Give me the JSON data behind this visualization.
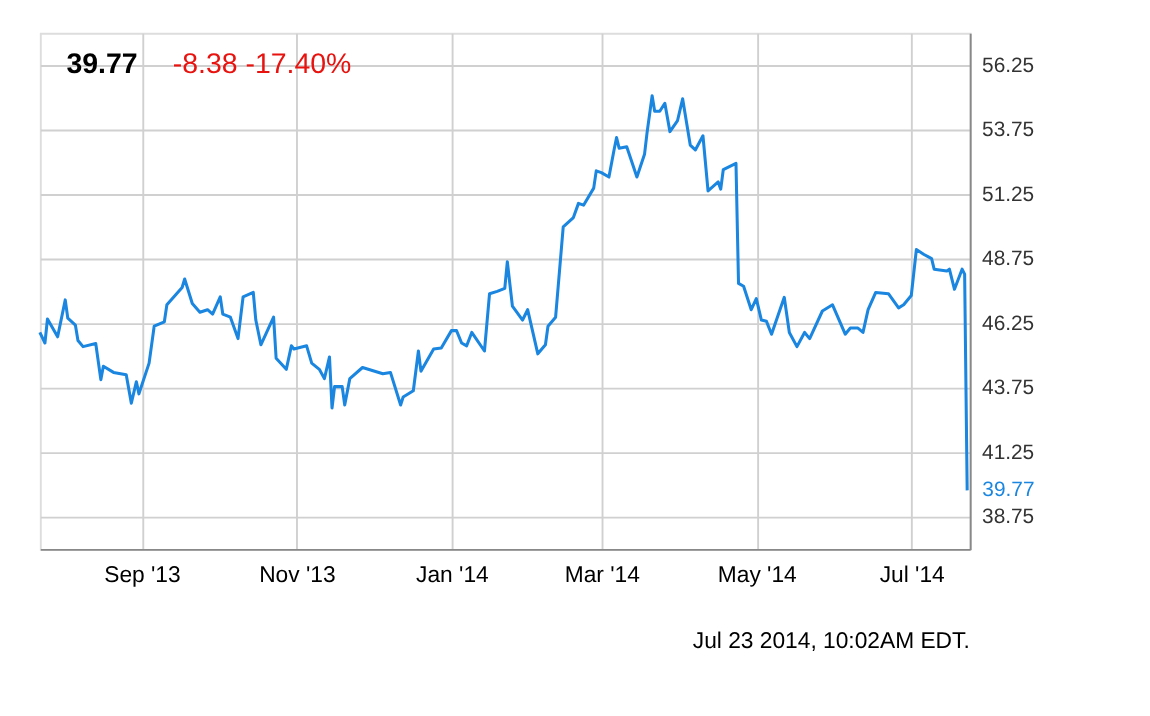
{
  "chart_data": {
    "type": "line",
    "title": "39.77",
    "subtitle": "-8.38 -17.40%",
    "x": [
      "2013-07-23",
      "2013-07-25",
      "2013-07-26",
      "2013-07-30",
      "2013-08-02",
      "2013-08-03",
      "2013-08-06",
      "2013-08-07",
      "2013-08-09",
      "2013-08-14",
      "2013-08-16",
      "2013-08-17",
      "2013-08-21",
      "2013-08-26",
      "2013-08-28",
      "2013-08-30",
      "2013-08-31",
      "2013-09-04",
      "2013-09-06",
      "2013-09-10",
      "2013-09-11",
      "2013-09-17",
      "2013-09-18",
      "2013-09-21",
      "2013-09-24",
      "2013-09-27",
      "2013-09-29",
      "2013-10-02",
      "2013-10-03",
      "2013-10-06",
      "2013-10-09",
      "2013-10-11",
      "2013-10-15",
      "2013-10-16",
      "2013-10-18",
      "2013-10-23",
      "2013-10-24",
      "2013-10-28",
      "2013-10-30",
      "2013-10-31",
      "2013-11-05",
      "2013-11-07",
      "2013-11-10",
      "2013-11-12",
      "2013-11-14",
      "2013-11-15",
      "2013-11-16",
      "2013-11-19",
      "2013-11-20",
      "2013-11-22",
      "2013-11-27",
      "2013-12-05",
      "2013-12-08",
      "2013-12-12",
      "2013-12-13",
      "2013-12-17",
      "2013-12-19",
      "2013-12-20",
      "2013-12-25",
      "2013-12-28",
      "2014-01-01",
      "2014-01-03",
      "2014-01-05",
      "2014-01-07",
      "2014-01-09",
      "2014-01-14",
      "2014-01-16",
      "2014-01-19",
      "2014-01-22",
      "2014-01-23",
      "2014-01-25",
      "2014-01-29",
      "2014-01-31",
      "2014-02-04",
      "2014-02-07",
      "2014-02-08",
      "2014-02-11",
      "2014-02-14",
      "2014-02-18",
      "2014-02-20",
      "2014-02-22",
      "2014-02-26",
      "2014-02-27",
      "2014-03-01",
      "2014-03-04",
      "2014-03-06",
      "2014-03-07",
      "2014-03-08",
      "2014-03-11",
      "2014-03-15",
      "2014-03-18",
      "2014-03-19",
      "2014-03-21",
      "2014-03-22",
      "2014-03-24",
      "2014-03-26",
      "2014-03-28",
      "2014-03-31",
      "2014-04-02",
      "2014-04-05",
      "2014-04-07",
      "2014-04-10",
      "2014-04-12",
      "2014-04-16",
      "2014-04-17",
      "2014-04-18",
      "2014-04-23",
      "2014-04-24",
      "2014-04-26",
      "2014-04-29",
      "2014-05-01",
      "2014-05-03",
      "2014-05-05",
      "2014-05-07",
      "2014-05-12",
      "2014-05-14",
      "2014-05-17",
      "2014-05-20",
      "2014-05-22",
      "2014-05-27",
      "2014-05-31",
      "2014-06-05",
      "2014-06-07",
      "2014-06-10",
      "2014-06-12",
      "2014-06-14",
      "2014-06-17",
      "2014-06-22",
      "2014-06-26",
      "2014-06-28",
      "2014-07-01",
      "2014-07-03",
      "2014-07-06",
      "2014-07-09",
      "2014-07-10",
      "2014-07-15",
      "2014-07-16",
      "2014-07-18",
      "2014-07-21",
      "2014-07-22",
      "2014-07-23"
    ],
    "series": [
      {
        "color": "#1a86e0",
        "values": [
          45.89,
          45.48,
          46.41,
          45.72,
          47.15,
          46.44,
          46.17,
          45.58,
          45.34,
          45.46,
          44.06,
          44.58,
          44.34,
          44.25,
          43.15,
          43.98,
          43.51,
          44.7,
          46.13,
          46.3,
          46.96,
          47.63,
          47.96,
          47.01,
          46.67,
          46.77,
          46.6,
          47.27,
          46.6,
          46.48,
          45.65,
          47.27,
          47.44,
          46.37,
          45.41,
          46.48,
          44.89,
          44.46,
          45.37,
          45.25,
          45.37,
          44.7,
          44.46,
          44.1,
          44.94,
          42.96,
          43.79,
          43.79,
          43.08,
          44.1,
          44.53,
          44.29,
          44.34,
          43.08,
          43.39,
          43.63,
          45.17,
          44.39,
          45.25,
          45.29,
          45.96,
          45.96,
          45.48,
          45.37,
          45.89,
          45.17,
          47.39,
          47.48,
          47.6,
          48.63,
          46.91,
          46.37,
          46.77,
          45.06,
          45.41,
          46.13,
          46.48,
          49.98,
          50.34,
          50.89,
          50.82,
          51.48,
          52.15,
          52.08,
          51.91,
          52.96,
          53.44,
          53.03,
          53.08,
          51.91,
          52.79,
          53.63,
          55.06,
          54.46,
          54.46,
          54.77,
          53.67,
          54.1,
          54.94,
          53.15,
          52.96,
          53.51,
          51.37,
          51.72,
          51.44,
          52.2,
          52.44,
          47.79,
          47.68,
          46.77,
          47.2,
          46.37,
          46.32,
          45.82,
          47.25,
          45.89,
          45.34,
          45.89,
          45.65,
          46.72,
          46.96,
          45.82,
          46.06,
          46.06,
          45.89,
          46.77,
          47.44,
          47.39,
          46.84,
          46.96,
          47.32,
          49.1,
          48.91,
          48.75,
          48.34,
          48.27,
          48.34,
          47.56,
          48.34,
          48.15,
          39.77
        ]
      }
    ],
    "xlim": [
      "2013-07-23",
      "2014-07-24"
    ],
    "xticks": [
      {
        "value": "2013-09-01",
        "label": "Sep '13"
      },
      {
        "value": "2013-11-01",
        "label": "Nov '13"
      },
      {
        "value": "2014-01-01",
        "label": "Jan '14"
      },
      {
        "value": "2014-03-01",
        "label": "Mar '14"
      },
      {
        "value": "2014-05-01",
        "label": "May '14"
      },
      {
        "value": "2014-07-01",
        "label": "Jul '14"
      }
    ],
    "ylim": [
      37.5,
      57.5
    ],
    "yticks": [
      38.75,
      41.25,
      43.75,
      46.25,
      48.75,
      51.25,
      53.75,
      56.25
    ],
    "grid": true,
    "marker": "none",
    "line_style": "solid",
    "annotations": [
      {
        "text": "39.77",
        "x": "2014-07-23",
        "y": 39.77
      },
      "Jul 23 2014, 10:02AM EDT."
    ]
  }
}
